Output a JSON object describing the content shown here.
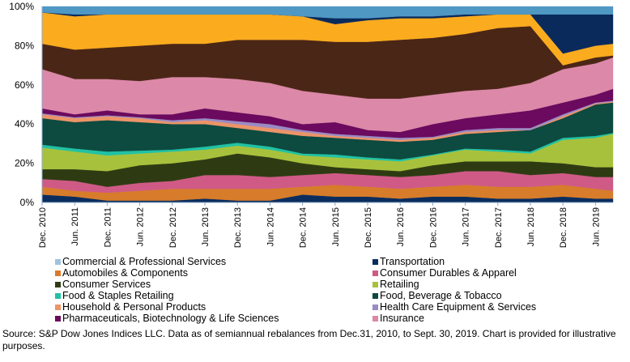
{
  "chart_data": {
    "type": "area",
    "stacked": true,
    "title": "",
    "xlabel": "",
    "ylabel": "",
    "ylim": [
      0,
      100
    ],
    "y_ticks": [
      "0%",
      "20%",
      "40%",
      "60%",
      "80%",
      "100%"
    ],
    "y_tick_values": [
      0,
      20,
      40,
      60,
      80,
      100
    ],
    "grid": false,
    "x_tick_labels": [
      "Dec. 2010",
      "Jun. 2011",
      "Dec. 2011",
      "Jun. 2012",
      "Dec. 2012",
      "Jun. 2013",
      "Dec. 2013",
      "Jun. 2014",
      "Dec. 2014",
      "Jun. 2015",
      "Dec. 2015",
      "Jun. 2016",
      "Dec. 2016",
      "Jun. 2017",
      "Dec. 2017",
      "Jun. 2018",
      "Dec. 2018",
      "Jun. 2019"
    ],
    "x": [
      "Dec. 2010",
      "Jun. 2011",
      "Dec. 2011",
      "Jun. 2012",
      "Dec. 2012",
      "Jun. 2013",
      "Dec. 2013",
      "Jun. 2014",
      "Dec. 2014",
      "Jun. 2015",
      "Dec. 2015",
      "Jun. 2016",
      "Dec. 2016",
      "Jun. 2017",
      "Dec. 2017",
      "Jun. 2018",
      "Dec. 2018",
      "Jun. 2019",
      "Sept. 2019"
    ],
    "series_cumulative_top": [
      {
        "name": "Transportation",
        "color": "#0b2d5e",
        "legend": true,
        "top": [
          4,
          3,
          1,
          1,
          1,
          2,
          1,
          1,
          4,
          3,
          3,
          2,
          3,
          3,
          2,
          2,
          3,
          2,
          2
        ]
      },
      {
        "name": "Automobiles & Components",
        "color": "#d77c2a",
        "legend": true,
        "top": [
          8,
          6,
          5,
          6,
          7,
          7,
          7,
          7,
          8,
          9,
          8,
          7,
          8,
          9,
          8,
          8,
          9,
          7,
          6
        ]
      },
      {
        "name": "Consumer Durables & Apparel",
        "color": "#cf5a86",
        "legend": true,
        "top": [
          12,
          11,
          8,
          10,
          11,
          14,
          14,
          13,
          14,
          15,
          14,
          13,
          14,
          16,
          16,
          14,
          15,
          13,
          13
        ]
      },
      {
        "name": "Consumer Services",
        "color": "#2e3b12",
        "legend": true,
        "top": [
          17,
          17,
          16,
          19,
          20,
          22,
          25,
          23,
          20,
          18,
          17,
          16,
          19,
          21,
          21,
          21,
          20,
          18,
          18
        ]
      },
      {
        "name": "Retailing",
        "color": "#a8c13c",
        "legend": true,
        "top": [
          28,
          26,
          24,
          25,
          26,
          27,
          29,
          27,
          24,
          23,
          22,
          21,
          24,
          27,
          26,
          25,
          32,
          33,
          35
        ]
      },
      {
        "name": "Food & Staples Retailing",
        "color": "#21c2a4",
        "legend": true,
        "top": [
          29.5,
          27.5,
          26,
          26.5,
          27,
          28.5,
          30.5,
          28.5,
          25,
          24.5,
          23,
          22,
          24.5,
          27.5,
          27,
          26,
          33,
          34,
          35.5
        ]
      },
      {
        "name": "Food, Beverage & Tobacco",
        "color": "#0d4a40",
        "legend": true,
        "top": [
          43,
          41,
          42,
          41,
          40,
          40,
          38,
          36,
          34,
          33,
          32,
          31,
          32,
          35,
          36,
          37,
          43,
          50,
          51
        ]
      },
      {
        "name": "Household & Personal Products",
        "color": "#ec9468",
        "legend": true,
        "top": [
          45,
          43,
          44,
          43,
          41,
          42,
          40,
          38,
          36,
          34,
          33,
          32,
          33,
          36,
          37,
          37,
          44,
          50.5,
          51.5
        ]
      },
      {
        "name": "Health Care Equipment & Services",
        "color": "#9a8bc4",
        "legend": true,
        "top": [
          45.5,
          43.5,
          44.5,
          43.5,
          42,
          43,
          41.5,
          40,
          37,
          35,
          34,
          33,
          33.5,
          37,
          38,
          38,
          45,
          51,
          52
        ]
      },
      {
        "name": "Pharmaceuticals, Biotechnology & Life Sciences",
        "color": "#6b0a5e",
        "legend": true,
        "top": [
          48,
          45,
          47,
          45,
          45,
          48,
          46,
          44,
          40,
          41,
          37,
          36,
          40,
          43,
          45,
          47,
          51,
          55,
          58
        ]
      },
      {
        "name": "Insurance",
        "color": "#dc88a8",
        "legend": true,
        "top": [
          68,
          63,
          63,
          62,
          64,
          64,
          63,
          61,
          57,
          55,
          53,
          53,
          55,
          57,
          58,
          61,
          68,
          71,
          74
        ]
      },
      {
        "name": "",
        "color": "#4a2616",
        "legend": false,
        "top": [
          81,
          78,
          79,
          80,
          81,
          81,
          83,
          83,
          83,
          82,
          82,
          83,
          84,
          86,
          89,
          90,
          70,
          74,
          75
        ]
      },
      {
        "name": "",
        "color": "#fbab1e",
        "legend": false,
        "top": [
          97,
          95,
          96,
          96,
          96,
          96,
          96,
          96,
          95,
          91,
          93,
          94,
          94,
          95,
          96,
          96,
          76,
          80,
          81
        ]
      },
      {
        "name": "",
        "color": "#0a2a5c",
        "legend": false,
        "top": [
          97,
          96,
          96,
          96,
          96,
          96,
          96,
          96,
          95,
          94,
          94,
          95,
          95,
          96,
          96,
          96,
          96,
          96,
          96
        ]
      },
      {
        "name": "Commercial  & Professional Services",
        "color": "#4f98c4",
        "legend": true,
        "top": [
          100,
          100,
          100,
          100,
          100,
          100,
          100,
          100,
          100,
          100,
          100,
          100,
          100,
          100,
          100,
          100,
          100,
          100,
          100
        ]
      }
    ],
    "legend": [
      {
        "label": "Commercial  & Professional Services",
        "color": "#9ec3de"
      },
      {
        "label": "Transportation",
        "color": "#0b2d5e"
      },
      {
        "label": "Automobiles & Components",
        "color": "#d77c2a"
      },
      {
        "label": "Consumer Durables & Apparel",
        "color": "#cf5a86"
      },
      {
        "label": "Consumer Services",
        "color": "#2e3b12"
      },
      {
        "label": "Retailing",
        "color": "#a8c13c"
      },
      {
        "label": "Food & Staples Retailing",
        "color": "#21c2a4"
      },
      {
        "label": "Food, Beverage & Tobacco",
        "color": "#0d4a40"
      },
      {
        "label": "Household & Personal Products",
        "color": "#ec9468"
      },
      {
        "label": "Health Care Equipment & Services",
        "color": "#9a8bc4"
      },
      {
        "label": "Pharmaceuticals, Biotechnology & Life Sciences",
        "color": "#6b0a5e"
      },
      {
        "label": "Insurance",
        "color": "#dc88a8"
      }
    ],
    "legend_placement": "bottom"
  },
  "source_note": "Source: S&P Dow Jones Indices LLC.  Data as of semiannual rebalances from Dec.31, 2010, to Sept. 30, 2019.  Chart is provided for illustrative purposes."
}
